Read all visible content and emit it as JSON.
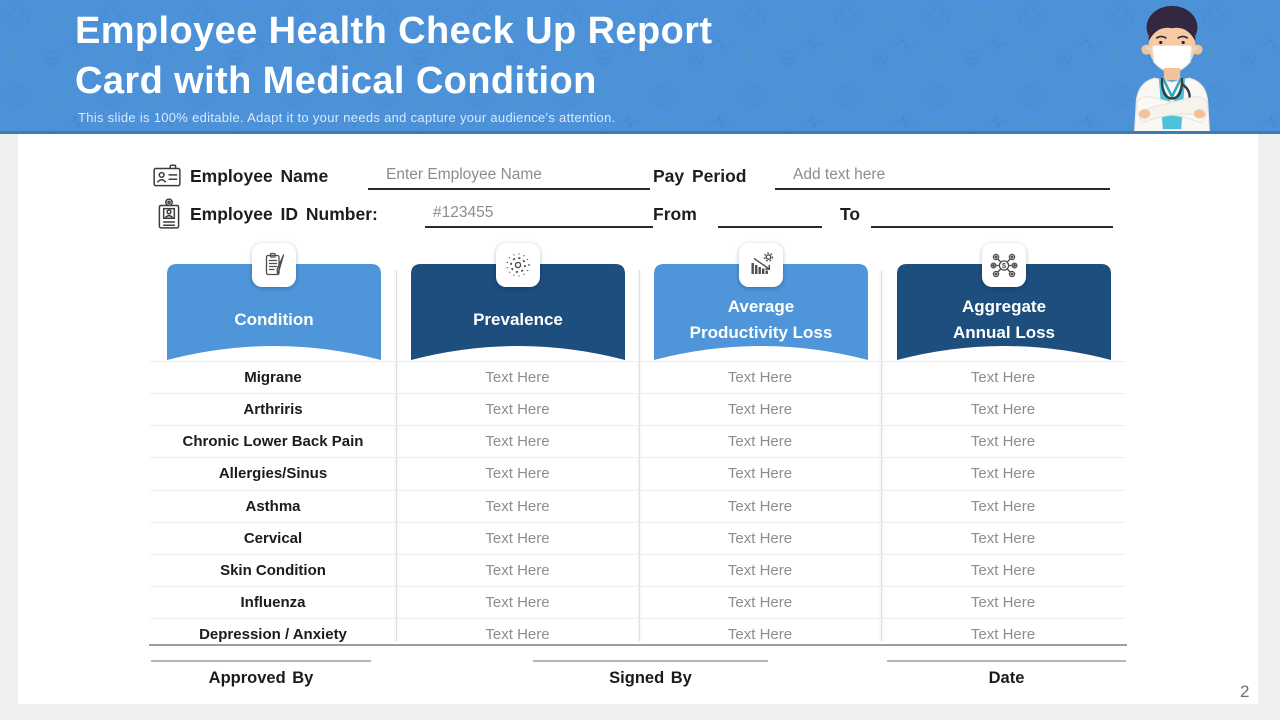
{
  "page_number": "2",
  "colors": {
    "header_blue": "#4D92D8",
    "light_blue": "#4E95D9",
    "dark_blue": "#1D4E7E"
  },
  "header": {
    "title_line1": "Employee Health Check Up Report",
    "title_line2": "Card with Medical Condition",
    "subtitle": "This slide is 100% editable. Adapt it to your needs and capture your audience's attention."
  },
  "form": {
    "employee_name_label": "Employee Name",
    "employee_name_placeholder": "Enter Employee Name",
    "pay_period_label": "Pay Period",
    "pay_period_placeholder": "Add text here",
    "employee_id_label": "Employee ID Number:",
    "employee_id_value": "#123455",
    "from_label": "From",
    "to_label": "To"
  },
  "columns": [
    {
      "label": "Condition",
      "icon": "clipboard-checklist-icon"
    },
    {
      "label": "Prevalence",
      "icon": "burst-icon"
    },
    {
      "label": "Average\nProductivity Loss",
      "icon": "declining-chart-gear-icon"
    },
    {
      "label": "Aggregate\nAnnual Loss",
      "icon": "dollar-network-icon"
    }
  ],
  "table": {
    "rows": [
      {
        "condition": "Migrane",
        "values": [
          "Text Here",
          "Text Here",
          "Text Here"
        ]
      },
      {
        "condition": "Arthriris",
        "values": [
          "Text Here",
          "Text Here",
          "Text Here"
        ]
      },
      {
        "condition": "Chronic Lower Back Pain",
        "values": [
          "Text Here",
          "Text Here",
          "Text Here"
        ]
      },
      {
        "condition": "Allergies/Sinus",
        "values": [
          "Text Here",
          "Text Here",
          "Text Here"
        ]
      },
      {
        "condition": "Asthma",
        "values": [
          "Text Here",
          "Text Here",
          "Text Here"
        ]
      },
      {
        "condition": "Cervical",
        "values": [
          "Text Here",
          "Text Here",
          "Text Here"
        ]
      },
      {
        "condition": "Skin Condition",
        "values": [
          "Text Here",
          "Text Here",
          "Text Here"
        ]
      },
      {
        "condition": "Influenza",
        "values": [
          "Text Here",
          "Text Here",
          "Text Here"
        ]
      },
      {
        "condition": "Depression / Anxiety",
        "values": [
          "Text Here",
          "Text Here",
          "Text Here"
        ]
      }
    ]
  },
  "signatures": [
    {
      "label": "Approved By"
    },
    {
      "label": "Signed By"
    },
    {
      "label": "Date"
    }
  ]
}
